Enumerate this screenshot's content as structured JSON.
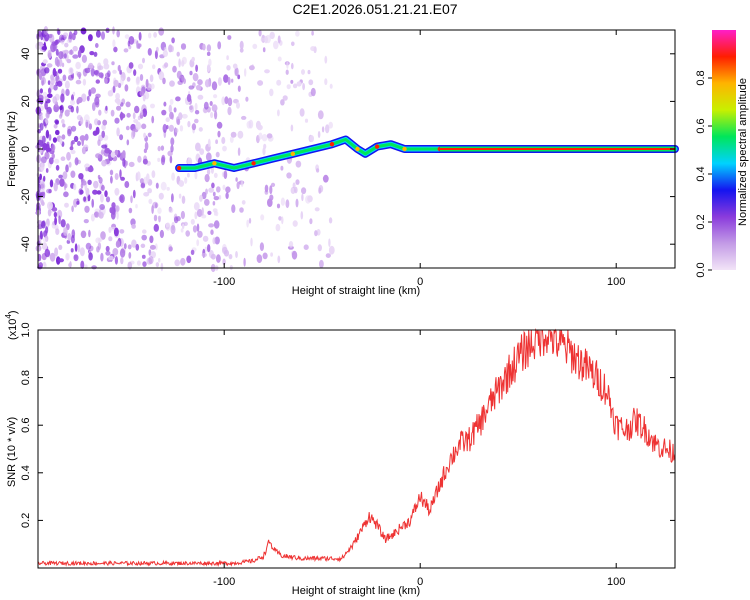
{
  "title": "C2E1.2026.051.21.21.E07",
  "chart_data": [
    {
      "type": "heatmap",
      "name": "spectrogram",
      "xlabel": "Height of straight line (km)",
      "ylabel": "Frequency (Hz)",
      "xlim": [
        -195,
        130
      ],
      "ylim": [
        -50,
        50
      ],
      "xticks": [
        -100,
        0,
        100
      ],
      "xtick_labels": [
        "-100",
        "0",
        "100"
      ],
      "yticks": [
        -40,
        -20,
        0,
        20,
        40
      ],
      "ytick_labels": [
        "-40",
        "-20",
        "0",
        "20",
        "40"
      ],
      "colorbar": {
        "label": "Normalized spectral amplitude",
        "range": [
          0,
          1
        ],
        "ticks": [
          0.0,
          0.2,
          0.4,
          0.6,
          0.8
        ],
        "tick_labels": [
          "0.0",
          "0.2",
          "0.4",
          "0.6",
          "0.8"
        ],
        "colors": [
          "#f2e4f7",
          "#c39be6",
          "#8a3bdc",
          "#1414f0",
          "#00d2ff",
          "#00e65a",
          "#c8f000",
          "#ffb400",
          "#ff1e00",
          "#ff1ec8"
        ]
      },
      "ridge_track": [
        {
          "x": -123,
          "y": -8
        },
        {
          "x": -115,
          "y": -8
        },
        {
          "x": -105,
          "y": -6
        },
        {
          "x": -95,
          "y": -8
        },
        {
          "x": -85,
          "y": -6
        },
        {
          "x": -75,
          "y": -4
        },
        {
          "x": -65,
          "y": -2
        },
        {
          "x": -55,
          "y": 0
        },
        {
          "x": -45,
          "y": 2
        },
        {
          "x": -38,
          "y": 4
        },
        {
          "x": -32,
          "y": 0
        },
        {
          "x": -28,
          "y": -2
        },
        {
          "x": -22,
          "y": 1
        },
        {
          "x": -15,
          "y": 2
        },
        {
          "x": -8,
          "y": 0
        },
        {
          "x": 0,
          "y": 0
        },
        {
          "x": 10,
          "y": 0
        },
        {
          "x": 130,
          "y": 0
        }
      ],
      "steady_line": {
        "x_start": 10,
        "x_end": 130,
        "y": 0
      }
    },
    {
      "type": "line",
      "name": "snr",
      "xlabel": "Height of straight line (km)",
      "ylabel": "SNR (10 * v/v)",
      "scale_label": "(x10",
      "scale_exponent": "4",
      "scale_close": ")",
      "xlim": [
        -195,
        130
      ],
      "ylim": [
        0,
        1.0
      ],
      "xticks": [
        -100,
        0,
        100
      ],
      "xtick_labels": [
        "-100",
        "0",
        "100"
      ],
      "yticks": [
        0.2,
        0.4,
        0.6,
        0.8,
        1.0
      ],
      "ytick_labels": [
        "0.2",
        "0.4",
        "0.6",
        "0.8",
        "1.0"
      ],
      "color": "#ee3333",
      "series": [
        {
          "name": "SNR",
          "x": [
            -195,
            -170,
            -140,
            -110,
            -95,
            -85,
            -80,
            -77,
            -74,
            -70,
            -60,
            -50,
            -40,
            -34,
            -30,
            -26,
            -22,
            -18,
            -14,
            -10,
            -5,
            0,
            5,
            10,
            15,
            20,
            25,
            30,
            35,
            40,
            45,
            50,
            55,
            60,
            65,
            70,
            75,
            80,
            85,
            90,
            95,
            100,
            105,
            110,
            115,
            120,
            125,
            130
          ],
          "y": [
            0.02,
            0.02,
            0.02,
            0.02,
            0.02,
            0.03,
            0.05,
            0.11,
            0.07,
            0.05,
            0.04,
            0.04,
            0.04,
            0.1,
            0.16,
            0.22,
            0.18,
            0.12,
            0.14,
            0.17,
            0.2,
            0.3,
            0.24,
            0.35,
            0.45,
            0.52,
            0.54,
            0.6,
            0.68,
            0.75,
            0.82,
            0.88,
            0.93,
            0.97,
            0.99,
            0.95,
            0.92,
            0.88,
            0.84,
            0.8,
            0.75,
            0.6,
            0.58,
            0.62,
            0.58,
            0.52,
            0.5,
            0.48
          ]
        }
      ]
    }
  ]
}
